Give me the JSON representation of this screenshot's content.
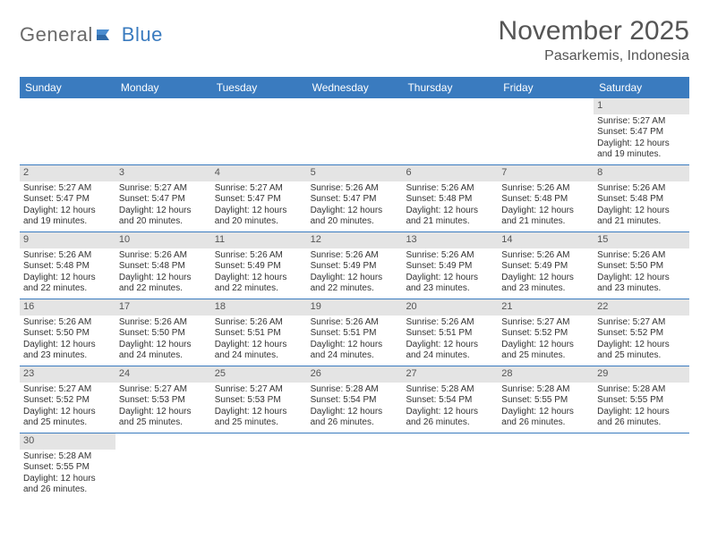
{
  "logo": {
    "text1": "General",
    "text2": "Blue"
  },
  "title": "November 2025",
  "location": "Pasarkemis, Indonesia",
  "colors": {
    "header_bg": "#3a7bbf",
    "header_text": "#ffffff",
    "date_bg": "#e4e4e4",
    "week_border": "#3a7bbf",
    "body_text": "#333333"
  },
  "daynames": [
    "Sunday",
    "Monday",
    "Tuesday",
    "Wednesday",
    "Thursday",
    "Friday",
    "Saturday"
  ],
  "labels": {
    "sunrise": "Sunrise:",
    "sunset": "Sunset:",
    "daylight": "Daylight:"
  },
  "weeks": [
    [
      null,
      null,
      null,
      null,
      null,
      null,
      {
        "d": "1",
        "sr": "5:27 AM",
        "ss": "5:47 PM",
        "dl": "12 hours and 19 minutes."
      }
    ],
    [
      {
        "d": "2",
        "sr": "5:27 AM",
        "ss": "5:47 PM",
        "dl": "12 hours and 19 minutes."
      },
      {
        "d": "3",
        "sr": "5:27 AM",
        "ss": "5:47 PM",
        "dl": "12 hours and 20 minutes."
      },
      {
        "d": "4",
        "sr": "5:27 AM",
        "ss": "5:47 PM",
        "dl": "12 hours and 20 minutes."
      },
      {
        "d": "5",
        "sr": "5:26 AM",
        "ss": "5:47 PM",
        "dl": "12 hours and 20 minutes."
      },
      {
        "d": "6",
        "sr": "5:26 AM",
        "ss": "5:48 PM",
        "dl": "12 hours and 21 minutes."
      },
      {
        "d": "7",
        "sr": "5:26 AM",
        "ss": "5:48 PM",
        "dl": "12 hours and 21 minutes."
      },
      {
        "d": "8",
        "sr": "5:26 AM",
        "ss": "5:48 PM",
        "dl": "12 hours and 21 minutes."
      }
    ],
    [
      {
        "d": "9",
        "sr": "5:26 AM",
        "ss": "5:48 PM",
        "dl": "12 hours and 22 minutes."
      },
      {
        "d": "10",
        "sr": "5:26 AM",
        "ss": "5:48 PM",
        "dl": "12 hours and 22 minutes."
      },
      {
        "d": "11",
        "sr": "5:26 AM",
        "ss": "5:49 PM",
        "dl": "12 hours and 22 minutes."
      },
      {
        "d": "12",
        "sr": "5:26 AM",
        "ss": "5:49 PM",
        "dl": "12 hours and 22 minutes."
      },
      {
        "d": "13",
        "sr": "5:26 AM",
        "ss": "5:49 PM",
        "dl": "12 hours and 23 minutes."
      },
      {
        "d": "14",
        "sr": "5:26 AM",
        "ss": "5:49 PM",
        "dl": "12 hours and 23 minutes."
      },
      {
        "d": "15",
        "sr": "5:26 AM",
        "ss": "5:50 PM",
        "dl": "12 hours and 23 minutes."
      }
    ],
    [
      {
        "d": "16",
        "sr": "5:26 AM",
        "ss": "5:50 PM",
        "dl": "12 hours and 23 minutes."
      },
      {
        "d": "17",
        "sr": "5:26 AM",
        "ss": "5:50 PM",
        "dl": "12 hours and 24 minutes."
      },
      {
        "d": "18",
        "sr": "5:26 AM",
        "ss": "5:51 PM",
        "dl": "12 hours and 24 minutes."
      },
      {
        "d": "19",
        "sr": "5:26 AM",
        "ss": "5:51 PM",
        "dl": "12 hours and 24 minutes."
      },
      {
        "d": "20",
        "sr": "5:26 AM",
        "ss": "5:51 PM",
        "dl": "12 hours and 24 minutes."
      },
      {
        "d": "21",
        "sr": "5:27 AM",
        "ss": "5:52 PM",
        "dl": "12 hours and 25 minutes."
      },
      {
        "d": "22",
        "sr": "5:27 AM",
        "ss": "5:52 PM",
        "dl": "12 hours and 25 minutes."
      }
    ],
    [
      {
        "d": "23",
        "sr": "5:27 AM",
        "ss": "5:52 PM",
        "dl": "12 hours and 25 minutes."
      },
      {
        "d": "24",
        "sr": "5:27 AM",
        "ss": "5:53 PM",
        "dl": "12 hours and 25 minutes."
      },
      {
        "d": "25",
        "sr": "5:27 AM",
        "ss": "5:53 PM",
        "dl": "12 hours and 25 minutes."
      },
      {
        "d": "26",
        "sr": "5:28 AM",
        "ss": "5:54 PM",
        "dl": "12 hours and 26 minutes."
      },
      {
        "d": "27",
        "sr": "5:28 AM",
        "ss": "5:54 PM",
        "dl": "12 hours and 26 minutes."
      },
      {
        "d": "28",
        "sr": "5:28 AM",
        "ss": "5:55 PM",
        "dl": "12 hours and 26 minutes."
      },
      {
        "d": "29",
        "sr": "5:28 AM",
        "ss": "5:55 PM",
        "dl": "12 hours and 26 minutes."
      }
    ],
    [
      {
        "d": "30",
        "sr": "5:28 AM",
        "ss": "5:55 PM",
        "dl": "12 hours and 26 minutes."
      },
      null,
      null,
      null,
      null,
      null,
      null
    ]
  ]
}
